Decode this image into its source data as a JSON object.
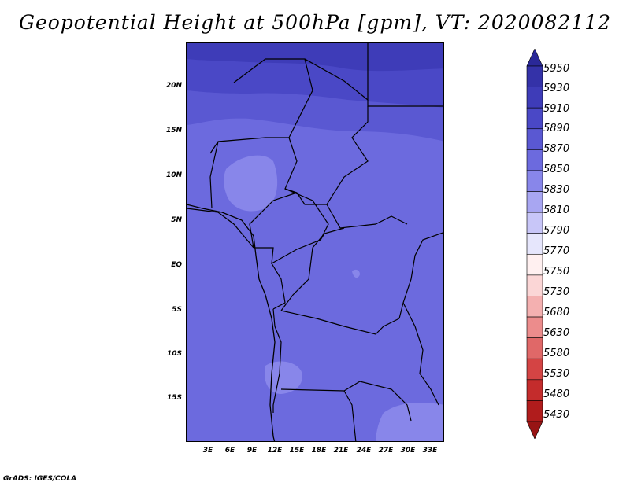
{
  "title": "Geopotential Height at 500hPa [gpm], VT: 2020082112",
  "credit": "GrADS: IGES/COLA",
  "map": {
    "region": "Central Africa",
    "lat_ticks": [
      "20N",
      "15N",
      "10N",
      "5N",
      "EQ",
      "5S",
      "10S",
      "15S"
    ],
    "lon_ticks": [
      "3E",
      "6E",
      "9E",
      "12E",
      "15E",
      "18E",
      "21E",
      "24E",
      "27E",
      "30E",
      "33E"
    ]
  },
  "colorbar": {
    "levels": [
      "5950",
      "5930",
      "5910",
      "5890",
      "5870",
      "5850",
      "5830",
      "5810",
      "5790",
      "5770",
      "5750",
      "5730",
      "5680",
      "5630",
      "5580",
      "5530",
      "5480",
      "5430"
    ],
    "colors": [
      "#2a2898",
      "#3432a8",
      "#3e3cb8",
      "#4a48c6",
      "#5a58d2",
      "#6c6ade",
      "#8886ea",
      "#a8a6f2",
      "#c8c6f8",
      "#e6e6fc",
      "#fff0f0",
      "#fbd6d6",
      "#f4b0b0",
      "#ec8c8c",
      "#e06868",
      "#d44444",
      "#c42c2c",
      "#b01c1c",
      "#981414"
    ]
  },
  "fields": {
    "high_color": "#3e3cb8",
    "band2_color": "#4a48c6",
    "band3_color": "#5a58d2",
    "base_color": "#6c6ade",
    "low_color": "#8886ea",
    "border_color": "#000000"
  }
}
